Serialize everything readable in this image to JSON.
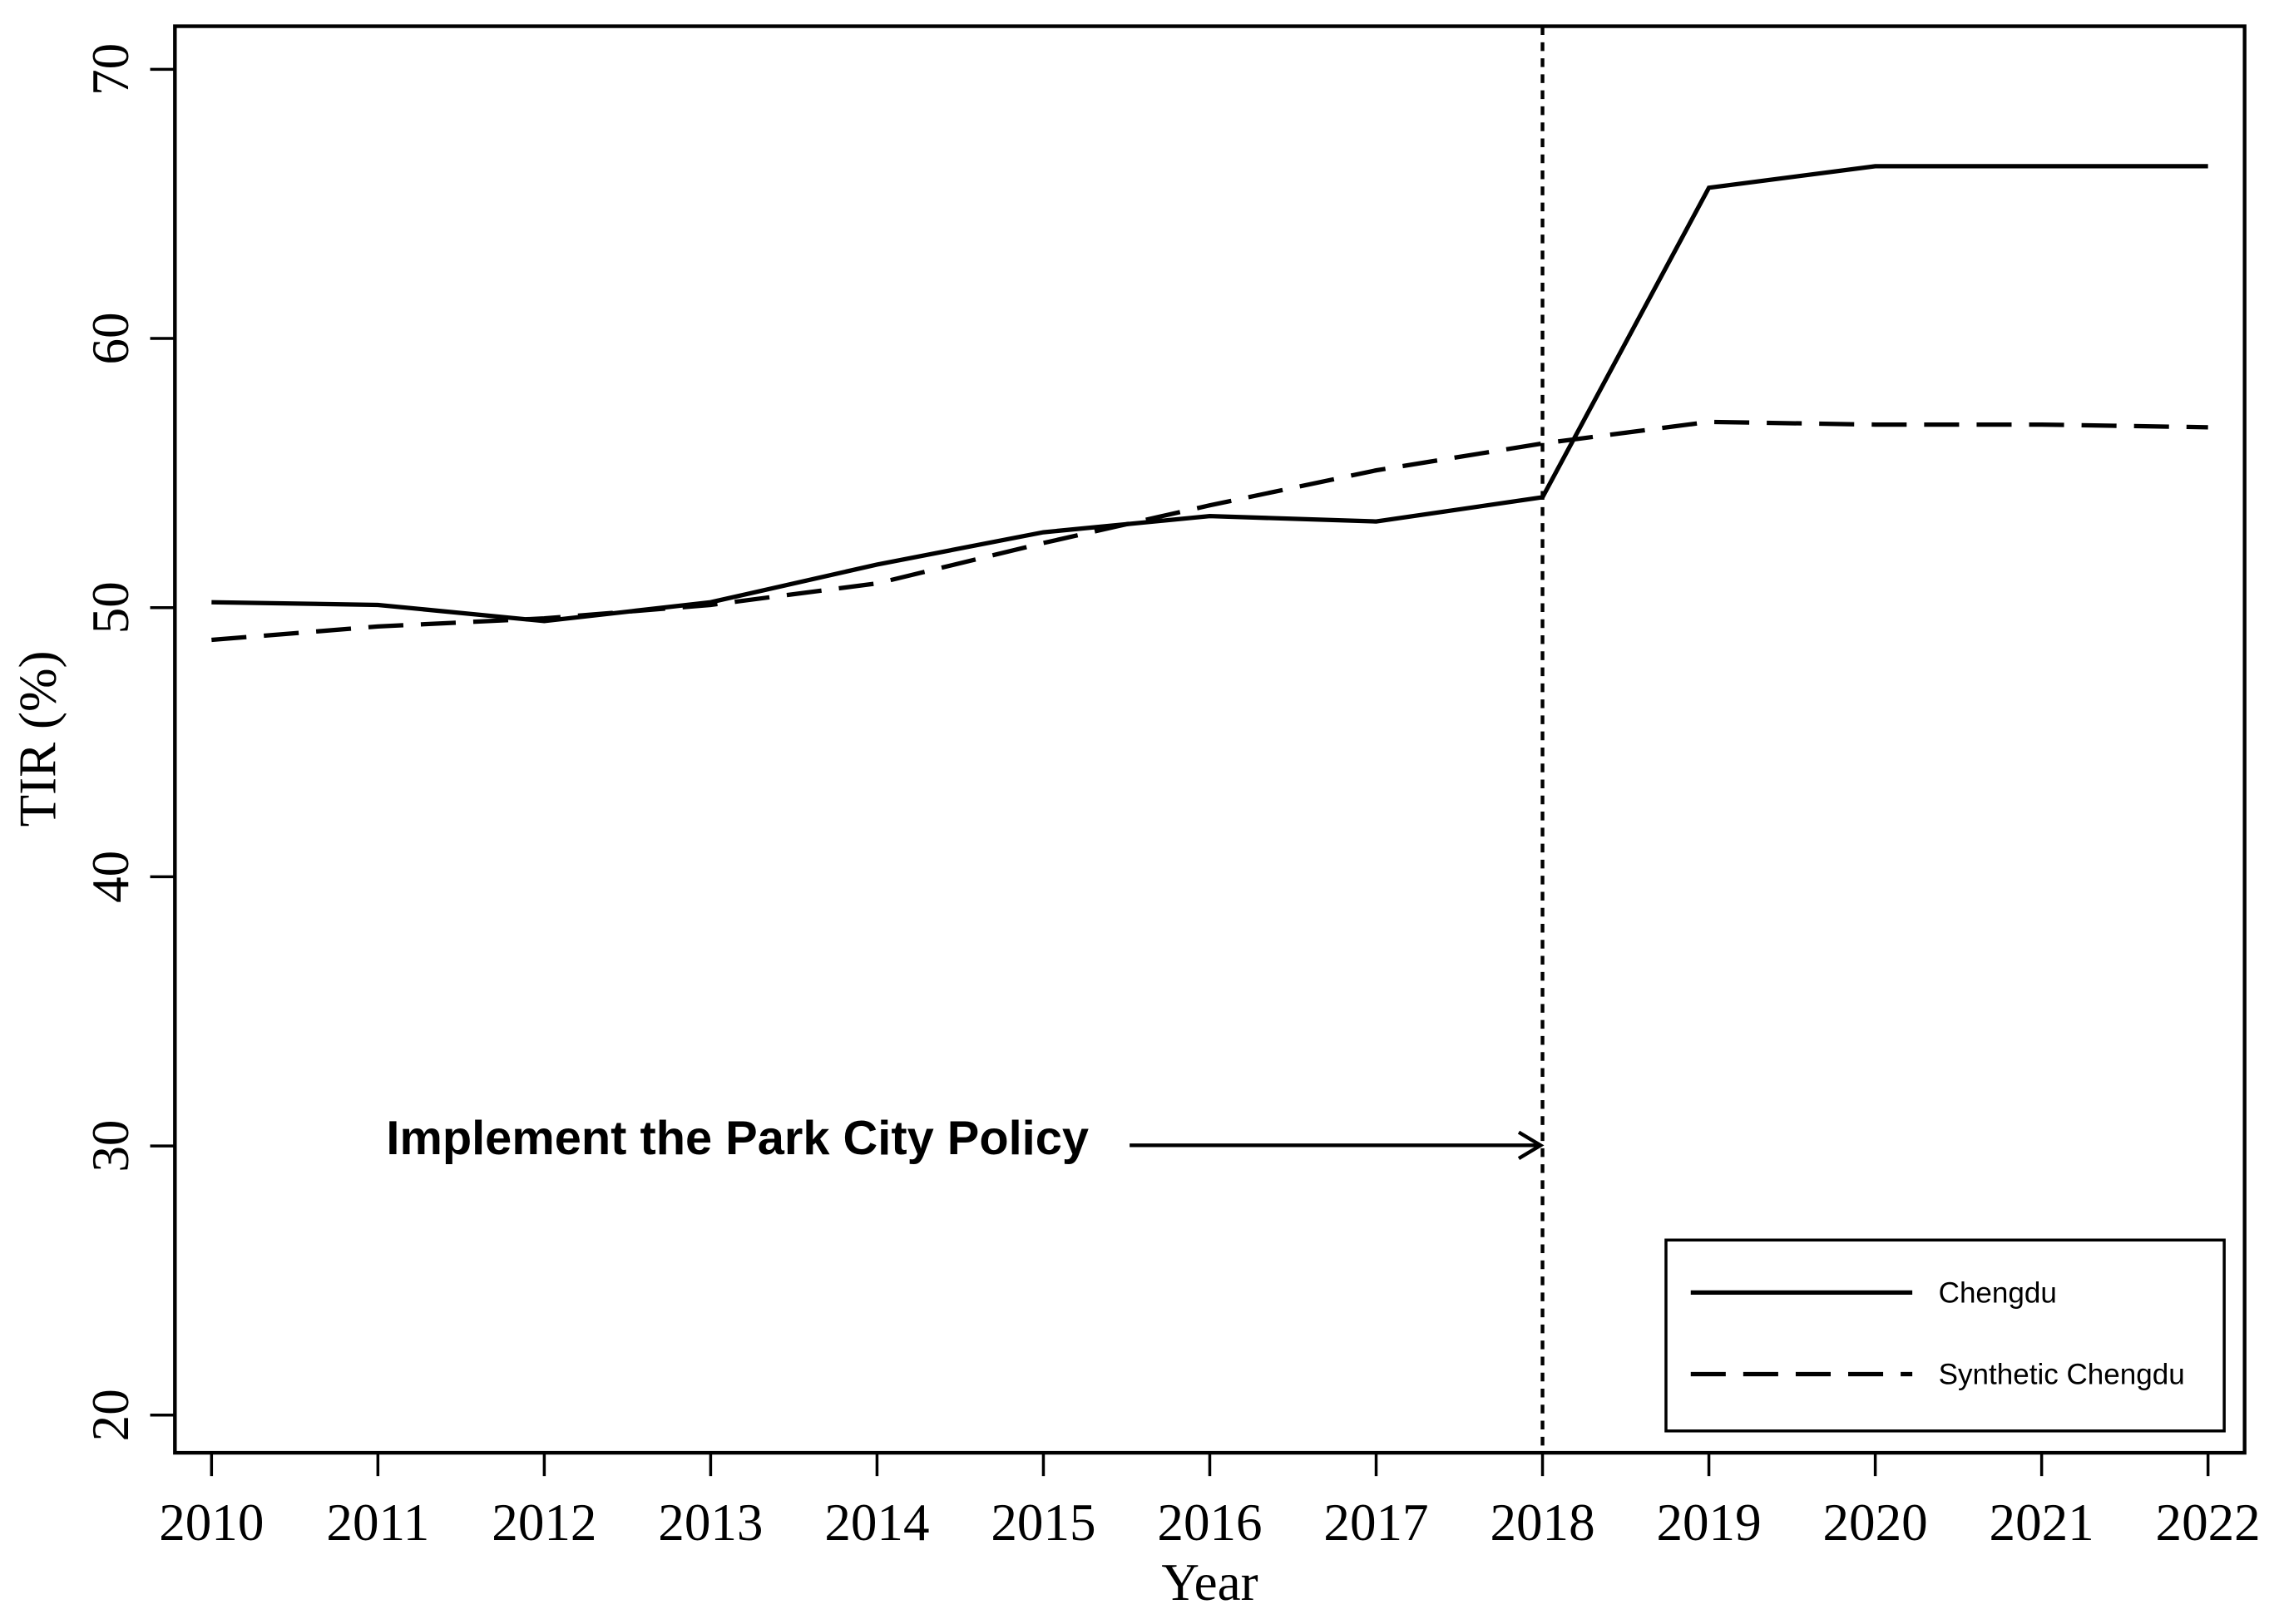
{
  "chart_data": {
    "type": "line",
    "x_label": "Year",
    "y_label": "TIR (%)",
    "annotation": "Implement the Park City Policy",
    "x": [
      2010,
      2011,
      2012,
      2013,
      2014,
      2015,
      2016,
      2017,
      2018,
      2019,
      2020,
      2021,
      2022
    ],
    "series": [
      {
        "name": "Chengdu",
        "color": "#000000",
        "dash": "solid",
        "values": [
          50.2,
          50.1,
          49.5,
          50.2,
          51.6,
          52.8,
          53.4,
          53.2,
          54.1,
          65.6,
          66.4,
          66.4,
          66.4
        ]
      },
      {
        "name": "Synthetic Chengdu",
        "color": "#000000",
        "dash": "dashed",
        "values": [
          48.8,
          49.3,
          49.6,
          50.1,
          50.9,
          52.4,
          53.8,
          55.1,
          56.1,
          56.9,
          56.8,
          56.8,
          56.7
        ]
      }
    ],
    "xlim": [
      2009.78,
      2022.22
    ],
    "ylim": [
      18.6,
      71.6
    ],
    "xticks": [
      2010,
      2011,
      2012,
      2013,
      2014,
      2015,
      2016,
      2017,
      2018,
      2019,
      2020,
      2021,
      2022
    ],
    "yticks": [
      20,
      30,
      40,
      50,
      60,
      70
    ],
    "vline_x": 2018,
    "legend": "bottom-right",
    "grid": false
  }
}
